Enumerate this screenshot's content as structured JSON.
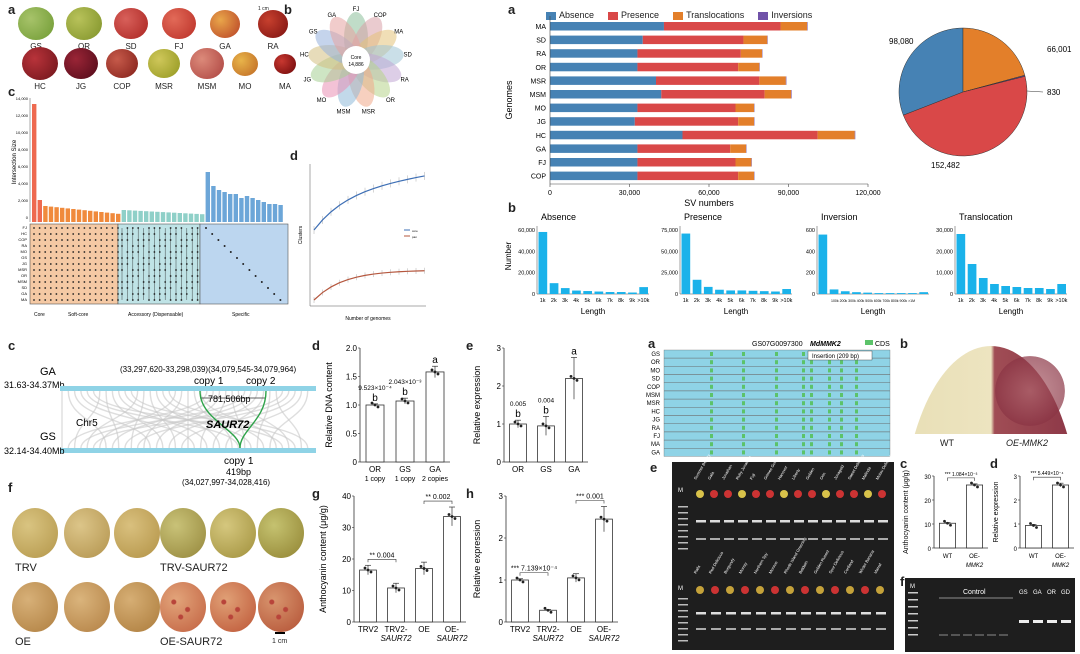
{
  "colors": {
    "absence": "#4682b4",
    "presence": "#d94848",
    "translocations": "#e37f2a",
    "inversions": "#7052a8",
    "hist": "#1ab2ea",
    "cyan": "#8fd3e6",
    "green": "#5cc36a"
  },
  "panel_letters": {
    "tl_a": "a",
    "tl_b": "b",
    "tl_c": "c",
    "tl_d": "d",
    "tr_a": "a",
    "tr_b": "b",
    "ml_c": "c",
    "ml_d": "d",
    "ml_e": "e",
    "bl_f": "f",
    "bl_g": "g",
    "bl_h": "h",
    "mr_a": "a",
    "mr_b": "b",
    "mr_c": "c",
    "mr_d": "d",
    "mr_e": "e",
    "mr_f": "f"
  },
  "apples_row1": [
    "GS",
    "OR",
    "SD",
    "FJ",
    "GA",
    "RA"
  ],
  "apples_row2": [
    "HC",
    "JG",
    "COP",
    "MSR",
    "MSM",
    "MO",
    "MA"
  ],
  "scale_small": "1 cm",
  "petal": {
    "center_title": "Core",
    "center_value": "14,886",
    "labels": [
      "FJ",
      "COP",
      "MA",
      "SD",
      "RA",
      "OR",
      "MSR",
      "MSM",
      "MO",
      "JG",
      "HC",
      "GS",
      "GA"
    ]
  },
  "upset": {
    "ylabel": "Intersection Size",
    "yticks": [
      "14,000",
      "12,000",
      "10,000",
      "8,000",
      "6,000",
      "4,000",
      "2,000",
      "0"
    ],
    "genomes": [
      "FJ",
      "HC",
      "COP",
      "RA",
      "MO",
      "GS",
      "JG",
      "MSR",
      "OR",
      "MSM",
      "SD",
      "GA",
      "MA"
    ],
    "sections": [
      "Core",
      "Soft-core",
      "Accessory (Dispensable)",
      "Specific"
    ]
  },
  "curve": {
    "ylabel": "Clusters",
    "xlabel": "Number of genomes",
    "legend": [
      "core",
      "pan"
    ]
  },
  "sv_chart": {
    "title_letter": "a",
    "legend": [
      "Absence",
      "Presence",
      "Translocations",
      "Inversions"
    ],
    "xlabel": "SV numbers",
    "ylabel": "Genomes",
    "xticks": [
      "0",
      "30,000",
      "60,000",
      "90,000",
      "120,000"
    ]
  },
  "chart_data": [
    {
      "type": "bar",
      "orientation": "horizontal",
      "stacked": true,
      "title": "",
      "xlabel": "SV numbers",
      "ylabel": "Genomes",
      "xlim": [
        0,
        120000
      ],
      "categories": [
        "MA",
        "SD",
        "RA",
        "OR",
        "MSR",
        "MSM",
        "MO",
        "JG",
        "HC",
        "GA",
        "FJ",
        "COP"
      ],
      "series": [
        {
          "name": "Absence",
          "values": [
            43000,
            35000,
            33000,
            33000,
            40000,
            42000,
            33000,
            32000,
            50000,
            33000,
            33000,
            33000
          ]
        },
        {
          "name": "Presence",
          "values": [
            44000,
            38000,
            39000,
            38000,
            39000,
            39000,
            37000,
            39000,
            51000,
            35000,
            37000,
            38000
          ]
        },
        {
          "name": "Translocations",
          "values": [
            10000,
            9000,
            8000,
            8000,
            10000,
            10000,
            7000,
            6000,
            14000,
            6000,
            6000,
            6000
          ]
        },
        {
          "name": "Inversions",
          "values": [
            200,
            150,
            150,
            150,
            200,
            200,
            150,
            150,
            200,
            150,
            150,
            150
          ]
        }
      ]
    },
    {
      "type": "pie",
      "title": "",
      "labels": [
        "Absence",
        "Translocations",
        "Inversions",
        "Presence"
      ],
      "values": [
        98080,
        66001,
        830,
        152482
      ],
      "value_labels": [
        "98,080",
        "66,001",
        "830",
        "152,482"
      ]
    },
    {
      "type": "bar",
      "title": "Absence",
      "xlabel": "Length",
      "ylabel": "Number",
      "categories": [
        "1k",
        "2k",
        "3k",
        "4k",
        "5k",
        "6k",
        "7k",
        "8k",
        "9k",
        ">10k"
      ],
      "values": [
        63000,
        11000,
        6000,
        3500,
        3000,
        2500,
        2000,
        2000,
        1500,
        7000
      ],
      "yticks": [
        "60,000",
        "40,000",
        "20,000",
        "0"
      ],
      "ylim": [
        0,
        65000
      ]
    },
    {
      "type": "bar",
      "title": "Presence",
      "xlabel": "Length",
      "ylabel": "",
      "categories": [
        "1k",
        "2k",
        "3k",
        "4k",
        "5k",
        "6k",
        "7k",
        "8k",
        "9k",
        ">10k"
      ],
      "values": [
        85000,
        20000,
        10000,
        6000,
        5000,
        5000,
        4500,
        4000,
        3500,
        7000
      ],
      "yticks": [
        "75,000",
        "50,000",
        "25,000",
        "0"
      ],
      "ylim": [
        0,
        90000
      ]
    },
    {
      "type": "bar",
      "title": "Inversion",
      "xlabel": "Length",
      "ylabel": "",
      "categories": [
        "100k",
        "200k",
        "300k",
        "400k",
        "500k",
        "600k",
        "700k",
        "800k",
        "900k",
        ">1M"
      ],
      "values": [
        650,
        50,
        30,
        20,
        15,
        10,
        10,
        10,
        10,
        20
      ],
      "yticks": [
        "600",
        "400",
        "200",
        "0"
      ],
      "ylim": [
        0,
        700
      ],
      "tick_labels": [
        "100k 200k 300k 400k 500k 600k 700k 800k 900k >1M"
      ]
    },
    {
      "type": "bar",
      "title": "Translocation",
      "xlabel": "Length",
      "ylabel": "",
      "categories": [
        "1k",
        "2k",
        "3k",
        "4k",
        "5k",
        "6k",
        "7k",
        "8k",
        "9k",
        ">10k"
      ],
      "values": [
        30000,
        15000,
        8000,
        5000,
        4000,
        3500,
        3000,
        3000,
        2500,
        5000
      ],
      "yticks": [
        "30,000",
        "20,000",
        "10,000",
        "0"
      ],
      "ylim": [
        0,
        32000
      ]
    },
    {
      "type": "bar",
      "title": "",
      "ylabel": "Relative DNA content",
      "categories": [
        "OR",
        "GS",
        "GA"
      ],
      "sub": [
        "1 copy",
        "1 copy",
        "2 copies"
      ],
      "values": [
        1.0,
        1.07,
        1.58
      ],
      "errors": [
        0.02,
        0.05,
        0.1
      ],
      "letters": [
        "b",
        "b",
        "a"
      ],
      "pvals": [
        "9.523×10⁻⁴",
        "2.043×10⁻³",
        ""
      ],
      "yticks": [
        "2.0",
        "1.5",
        "1.0",
        "0.5",
        "0"
      ],
      "ylim": [
        0,
        2.0
      ]
    },
    {
      "type": "bar",
      "title": "",
      "ylabel": "Relative expression",
      "categories": [
        "OR",
        "GS",
        "GA"
      ],
      "values": [
        1.0,
        0.95,
        2.2
      ],
      "errors": [
        0.1,
        0.25,
        0.55
      ],
      "letters": [
        "b",
        "b",
        "a"
      ],
      "pvals": [
        "0.005",
        "0.004",
        ""
      ],
      "yticks": [
        "3",
        "2",
        "1",
        "0"
      ],
      "ylim": [
        0,
        3
      ]
    },
    {
      "type": "bar",
      "title": "",
      "ylabel": "Anthocyanin content (μg/g)",
      "categories": [
        "TRV2",
        "TRV2-SAUR72",
        "OE",
        "OE-SAUR72"
      ],
      "values": [
        16.5,
        10.8,
        17,
        33.5
      ],
      "errors": [
        1.5,
        1.5,
        2,
        3
      ],
      "sig": [
        {
          "pair": [
            0,
            1
          ],
          "label": "** 0.004"
        },
        {
          "pair": [
            2,
            3
          ],
          "label": "** 0.002"
        }
      ],
      "yticks": [
        "40",
        "30",
        "20",
        "10",
        "0"
      ],
      "ylim": [
        0,
        40
      ]
    },
    {
      "type": "bar",
      "title": "",
      "ylabel": "Relative expression",
      "categories": [
        "TRV2",
        "TRV2-SAUR72",
        "OE",
        "OE-SAUR72"
      ],
      "values": [
        1.0,
        0.28,
        1.05,
        2.45
      ],
      "errors": [
        0.03,
        0.02,
        0.1,
        0.3
      ],
      "sig": [
        {
          "pair": [
            0,
            1
          ],
          "label": "*** 7.139×10⁻⁴"
        },
        {
          "pair": [
            2,
            3
          ],
          "label": "*** 0.001"
        }
      ],
      "yticks": [
        "3",
        "2",
        "1",
        "0"
      ],
      "ylim": [
        0,
        3
      ]
    },
    {
      "type": "bar",
      "title": "",
      "ylabel": "Anthocyanin content (μg/g)",
      "categories": [
        "WT",
        "OE-MMK2"
      ],
      "values": [
        11,
        28
      ],
      "errors": [
        0.3,
        0.5
      ],
      "sig": [
        {
          "pair": [
            0,
            1
          ],
          "label": "*** 1.084×10⁻³"
        }
      ],
      "yticks": [
        "30",
        "20",
        "10",
        "0"
      ],
      "ylim": [
        0,
        32
      ]
    },
    {
      "type": "bar",
      "title": "",
      "ylabel": "Relative expression",
      "categories": [
        "WT",
        "OE-MMK2"
      ],
      "values": [
        1.0,
        2.8
      ],
      "errors": [
        0.05,
        0.08
      ],
      "sig": [
        {
          "pair": [
            0,
            1
          ],
          "label": "*** 5.449×10⁻⁴"
        }
      ],
      "yticks": [
        "3",
        "2",
        "1",
        "0"
      ],
      "ylim": [
        0,
        3.2
      ]
    }
  ],
  "synteny": {
    "top_name": "GA",
    "top_range": "31.63-34.37Mb",
    "bottom_name": "GS",
    "bottom_range": "32.14-34.40Mb",
    "chr": "Chr5",
    "coords_top": "(33,297,620-33,298,039)(34,079,545-34,079,964)",
    "copy1": "copy 1",
    "copy2": "copy 2",
    "distance": "781,506bp",
    "gene": "SAUR72",
    "copy_bottom": "copy 1",
    "bp": "419bp",
    "coords_bottom": "(34,027,997-34,028,416)"
  },
  "fruit_labels": {
    "trv": "TRV",
    "trv_saur": "TRV-SAUR72",
    "oe": "OE",
    "oe_saur": "OE-SAUR72",
    "scale": "1 cm"
  },
  "alignment": {
    "gene_id": "GS07G0097300",
    "gene": "MdMMK2",
    "cds": "CDS",
    "insertion": "Insertion (209 bp)",
    "rows": [
      "GS",
      "OR",
      "MO",
      "SD",
      "COP",
      "MSM",
      "MSR",
      "HC",
      "JG",
      "RA",
      "FJ",
      "MA",
      "GA"
    ]
  },
  "photo_labels": {
    "wt": "WT",
    "oe": "OE-MMK2"
  },
  "gel": {
    "marker": "M",
    "control": "Control",
    "lanes_f": [
      "GS",
      "GA",
      "OR",
      "GD"
    ],
    "top_lanes": [
      "Summer Beauty",
      "Gala",
      "Jonathan",
      "Ruby Jonathan",
      "Fuji",
      "Grimes Gold",
      "Hanover",
      "Liberty",
      "Golden",
      "Orin",
      "Jonagold",
      "Sweet Delicious",
      "Malinda",
      "Mutsu Delicious"
    ],
    "bottom_lanes": [
      "Ralls",
      "Red Delicious",
      "Burgundy",
      "Murray",
      "Northern Spy",
      "Monroe",
      "Rhode Island Greening",
      "Baldwin",
      "Golden Russet",
      "Spur Delicious",
      "Cortland",
      "Winter Banana",
      "Idared"
    ]
  }
}
